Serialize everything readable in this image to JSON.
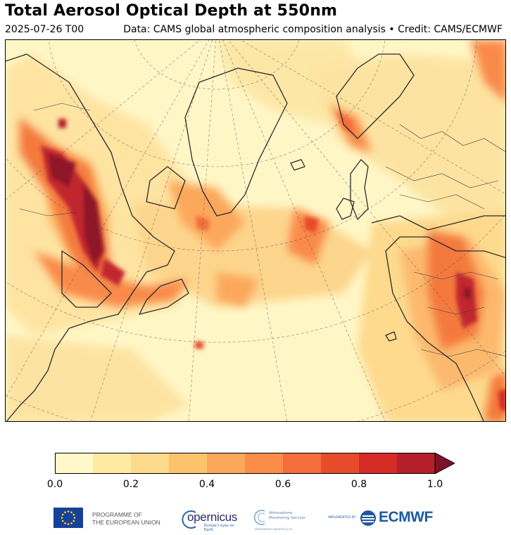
{
  "header": {
    "title": "Total Aerosol Optical Depth at 550nm",
    "date": "2025-07-26 T00",
    "credit": "Data: CAMS global atmospheric composition analysis • Credit: CAMS/ECMWF"
  },
  "map": {
    "variable": "Total Aerosol Optical Depth at 550nm",
    "projection": "polar-stereographic",
    "region": "North Atlantic",
    "graticule": "dashed",
    "background_color": "#fff6c6"
  },
  "colorbar": {
    "bounds": [
      0.0,
      0.1,
      0.2,
      0.3,
      0.4,
      0.5,
      0.6,
      0.7,
      0.8,
      0.9,
      1.0
    ],
    "colors": [
      "#fff8c8",
      "#feeaa0",
      "#fdd98b",
      "#fdc26c",
      "#fca85b",
      "#fc8d49",
      "#f46d3a",
      "#e84a2c",
      "#d42c24",
      "#b51e2b"
    ],
    "extend_color": "#7d1226",
    "extend": "max",
    "tick_labels": [
      "0.0",
      "0.2",
      "0.4",
      "0.6",
      "0.8",
      "1.0"
    ]
  },
  "logos": {
    "eu_line1": "PROGRAMME OF",
    "eu_line2": "THE EUROPEAN UNION",
    "copernicus": "opernicus",
    "copernicus_sub": "Europe's eyes on Earth",
    "cams_line1": "Atmosphere",
    "cams_line2": "Monitoring Service",
    "cams_sub": "atmosphere.copernicus.eu",
    "implemented_by": "IMPLEMENTED BY",
    "ecmwf": "ECMWF"
  }
}
